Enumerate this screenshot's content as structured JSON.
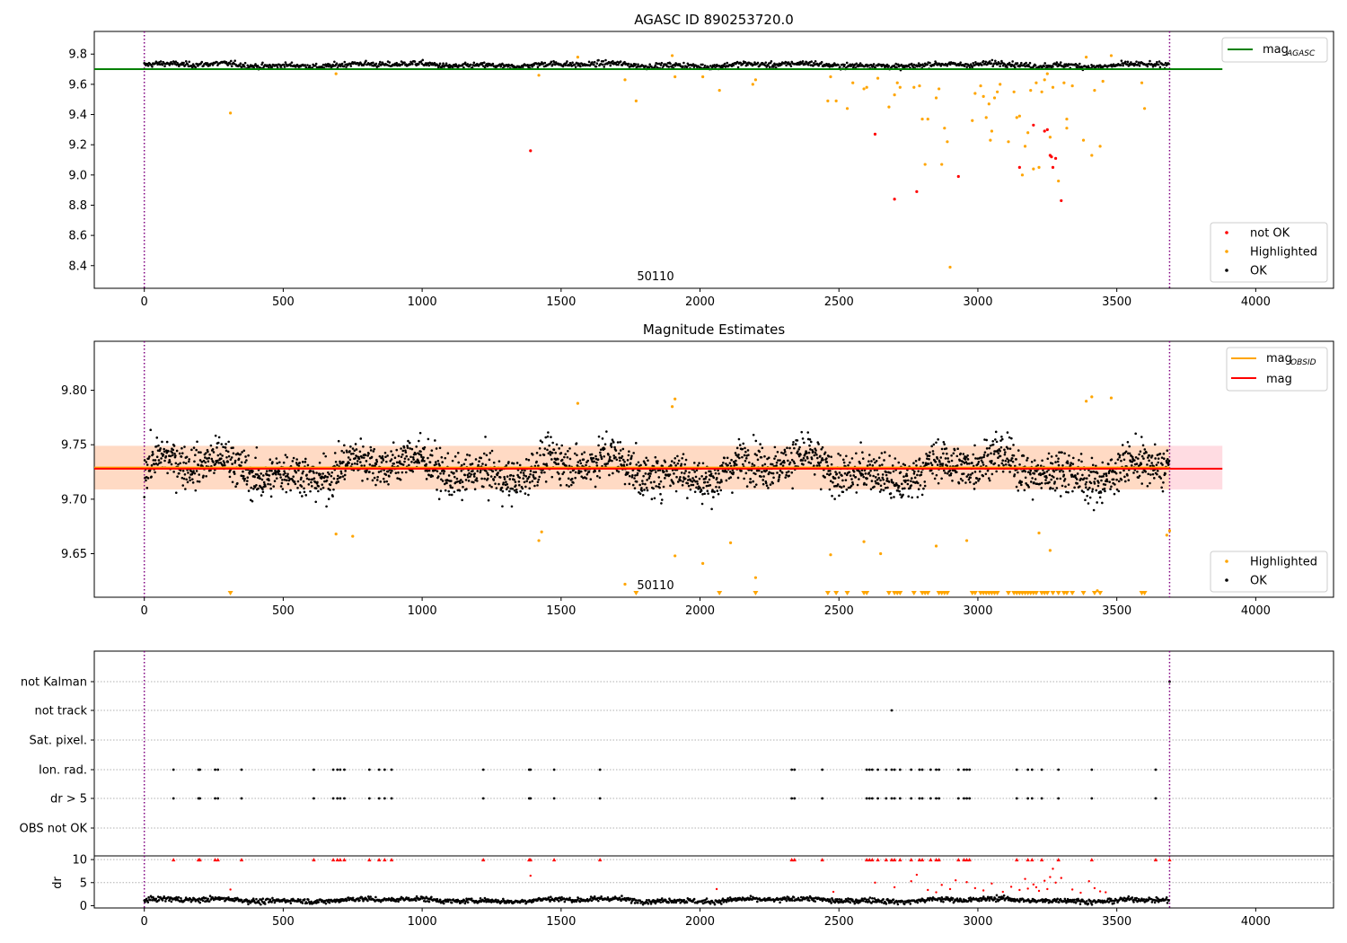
{
  "colors": {
    "ok": "#000000",
    "highlighted": "#ffa500",
    "not_ok": "#ff0000",
    "mag_agasc": "#008000",
    "mag_obsid": "#ffa500",
    "mag": "#ff0000",
    "band_obsid": "#ffdab9",
    "band_mag": "#ffc0cb",
    "obs_boundary": "#800080",
    "grid": "#b0b0b0"
  },
  "chart_data": [
    {
      "type": "scatter",
      "title": "AGASC ID 890253720.0",
      "xlim": [
        -180,
        4280
      ],
      "ylim": [
        8.25,
        9.95
      ],
      "xticks": [
        "0",
        "500",
        "1000",
        "1500",
        "2000",
        "2500",
        "3000",
        "3500",
        "4000"
      ],
      "xtick_values": [
        0,
        500,
        1000,
        1500,
        2000,
        2500,
        3000,
        3500,
        4000
      ],
      "yticks": [
        "8.4",
        "8.6",
        "8.8",
        "9.0",
        "9.2",
        "9.4",
        "9.6",
        "9.8"
      ],
      "ytick_values": [
        8.4,
        8.6,
        8.8,
        9.0,
        9.2,
        9.4,
        9.6,
        9.8
      ],
      "obs_boundaries": [
        0,
        3690
      ],
      "obsid_label": "50110",
      "obsid_label_x": 1840,
      "mag_agasc": {
        "value": 9.7,
        "x_range": [
          -180,
          3880
        ]
      },
      "ok_band": {
        "center": 9.728,
        "spread": 0.015,
        "count": 1300,
        "x_range": [
          0,
          3690
        ]
      },
      "legend_lines": [
        {
          "key": "mag_agasc",
          "name": "mag",
          "subscript": "AGASC"
        }
      ],
      "legend_points": [
        {
          "key": "not_ok",
          "name": "not OK"
        },
        {
          "key": "highlighted",
          "name": "Highlighted"
        },
        {
          "key": "ok",
          "name": "OK"
        }
      ],
      "highlighted_points": [
        [
          310,
          9.41
        ],
        [
          690,
          9.67
        ],
        [
          1420,
          9.66
        ],
        [
          1560,
          9.78
        ],
        [
          1730,
          9.63
        ],
        [
          1770,
          9.49
        ],
        [
          1900,
          9.79
        ],
        [
          1910,
          9.65
        ],
        [
          2010,
          9.65
        ],
        [
          2070,
          9.56
        ],
        [
          2190,
          9.6
        ],
        [
          2200,
          9.63
        ],
        [
          2460,
          9.49
        ],
        [
          2470,
          9.65
        ],
        [
          2490,
          9.49
        ],
        [
          2530,
          9.44
        ],
        [
          2550,
          9.61
        ],
        [
          2590,
          9.57
        ],
        [
          2600,
          9.58
        ],
        [
          2640,
          9.64
        ],
        [
          2680,
          9.45
        ],
        [
          2700,
          9.53
        ],
        [
          2710,
          9.61
        ],
        [
          2720,
          9.58
        ],
        [
          2770,
          9.58
        ],
        [
          2790,
          9.59
        ],
        [
          2800,
          9.37
        ],
        [
          2810,
          9.07
        ],
        [
          2820,
          9.37
        ],
        [
          2850,
          9.51
        ],
        [
          2860,
          9.57
        ],
        [
          2870,
          9.07
        ],
        [
          2880,
          9.31
        ],
        [
          2890,
          9.22
        ],
        [
          2900,
          8.39
        ],
        [
          2980,
          9.36
        ],
        [
          2990,
          9.54
        ],
        [
          3010,
          9.59
        ],
        [
          3020,
          9.52
        ],
        [
          3030,
          9.38
        ],
        [
          3040,
          9.47
        ],
        [
          3045,
          9.23
        ],
        [
          3050,
          9.29
        ],
        [
          3060,
          9.51
        ],
        [
          3070,
          9.55
        ],
        [
          3080,
          9.6
        ],
        [
          3110,
          9.22
        ],
        [
          3130,
          9.55
        ],
        [
          3140,
          9.38
        ],
        [
          3150,
          9.39
        ],
        [
          3160,
          9.0
        ],
        [
          3170,
          9.19
        ],
        [
          3180,
          9.28
        ],
        [
          3190,
          9.56
        ],
        [
          3200,
          9.04
        ],
        [
          3210,
          9.61
        ],
        [
          3220,
          9.05
        ],
        [
          3230,
          9.55
        ],
        [
          3240,
          9.63
        ],
        [
          3250,
          9.67
        ],
        [
          3260,
          9.25
        ],
        [
          3270,
          9.58
        ],
        [
          3290,
          8.96
        ],
        [
          3310,
          9.61
        ],
        [
          3320,
          9.37
        ],
        [
          3320,
          9.31
        ],
        [
          3340,
          9.59
        ],
        [
          3380,
          9.23
        ],
        [
          3390,
          9.78
        ],
        [
          3410,
          9.13
        ],
        [
          3420,
          9.56
        ],
        [
          3440,
          9.19
        ],
        [
          3450,
          9.62
        ],
        [
          3480,
          9.79
        ],
        [
          3590,
          9.61
        ],
        [
          3600,
          9.44
        ]
      ],
      "not_ok_points": [
        [
          1390,
          9.16
        ],
        [
          2630,
          9.27
        ],
        [
          2700,
          8.84
        ],
        [
          2780,
          8.89
        ],
        [
          2930,
          8.99
        ],
        [
          3150,
          9.05
        ],
        [
          3200,
          9.33
        ],
        [
          3240,
          9.29
        ],
        [
          3250,
          9.3
        ],
        [
          3260,
          9.13
        ],
        [
          3265,
          9.12
        ],
        [
          3270,
          9.05
        ],
        [
          3280,
          9.11
        ],
        [
          3300,
          8.83
        ]
      ]
    },
    {
      "type": "scatter",
      "title": "Magnitude Estimates",
      "xlim": [
        -180,
        4280
      ],
      "ylim": [
        9.61,
        9.845
      ],
      "xticks": [
        "0",
        "500",
        "1000",
        "1500",
        "2000",
        "2500",
        "3000",
        "3500",
        "4000"
      ],
      "xtick_values": [
        0,
        500,
        1000,
        1500,
        2000,
        2500,
        3000,
        3500,
        4000
      ],
      "yticks": [
        "9.65",
        "9.70",
        "9.75",
        "9.80"
      ],
      "ytick_values": [
        9.65,
        9.7,
        9.75,
        9.8
      ],
      "obs_boundaries": [
        0,
        3690
      ],
      "obsid_label": "50110",
      "obsid_label_x": 1840,
      "mag_obsid": {
        "value": 9.729,
        "band": [
          9.709,
          9.749
        ],
        "x_range": [
          -180,
          3690
        ]
      },
      "mag": {
        "value": 9.728,
        "band": [
          9.709,
          9.749
        ],
        "x_range": [
          -180,
          3880
        ]
      },
      "ok_band": {
        "center": 9.728,
        "spread": 0.016,
        "count": 2600,
        "x_range": [
          0,
          3690
        ]
      },
      "legend_lines": [
        {
          "key": "mag_obsid",
          "name": "mag",
          "subscript": "OBSID"
        },
        {
          "key": "mag",
          "name": "mag",
          "subscript": ""
        }
      ],
      "legend_points": [
        {
          "key": "highlighted",
          "name": "Highlighted"
        },
        {
          "key": "ok",
          "name": "OK"
        }
      ],
      "highlighted_points": [
        [
          690,
          9.668
        ],
        [
          750,
          9.666
        ],
        [
          1420,
          9.662
        ],
        [
          1430,
          9.67
        ],
        [
          1560,
          9.788
        ],
        [
          1730,
          9.622
        ],
        [
          1900,
          9.785
        ],
        [
          1910,
          9.792
        ],
        [
          1910,
          9.648
        ],
        [
          2010,
          9.641
        ],
        [
          2110,
          9.66
        ],
        [
          2200,
          9.628
        ],
        [
          2470,
          9.649
        ],
        [
          2590,
          9.661
        ],
        [
          2650,
          9.65
        ],
        [
          2850,
          9.657
        ],
        [
          2960,
          9.662
        ],
        [
          3220,
          9.669
        ],
        [
          3260,
          9.653
        ],
        [
          3390,
          9.79
        ],
        [
          3410,
          9.794
        ],
        [
          3480,
          9.793
        ],
        [
          3430,
          9.616
        ],
        [
          3680,
          9.667
        ],
        [
          3690,
          9.671
        ]
      ],
      "below_markers": [
        310,
        1770,
        2070,
        2200,
        2460,
        2490,
        2530,
        2590,
        2600,
        2680,
        2700,
        2710,
        2720,
        2770,
        2800,
        2810,
        2820,
        2860,
        2870,
        2880,
        2890,
        2980,
        2990,
        3010,
        3020,
        3030,
        3040,
        3050,
        3060,
        3070,
        3110,
        3130,
        3140,
        3150,
        3160,
        3170,
        3180,
        3190,
        3200,
        3210,
        3230,
        3240,
        3250,
        3270,
        3290,
        3310,
        3320,
        3340,
        3380,
        3420,
        3440,
        3590,
        3600
      ]
    },
    {
      "type": "scatter",
      "title": "",
      "xlim": [
        -180,
        4280
      ],
      "xticks": [
        "0",
        "500",
        "1000",
        "1500",
        "2000",
        "2500",
        "3000",
        "3500",
        "4000"
      ],
      "xtick_values": [
        0,
        500,
        1000,
        1500,
        2000,
        2500,
        3000,
        3500,
        4000
      ],
      "obs_boundaries": [
        0,
        3690
      ],
      "flag_rows": [
        "not Kalman",
        "not track",
        "Sat. pixel.",
        "Ion. rad.",
        "dr > 5",
        "OBS not OK"
      ],
      "flag_points": {
        "not Kalman": [
          3690
        ],
        "not track": [
          2690
        ],
        "Sat. pixel.": [],
        "Ion. rad.": [
          105,
          195,
          200,
          255,
          265,
          350,
          610,
          680,
          695,
          705,
          720,
          810,
          845,
          865,
          890,
          1220,
          1385,
          1390,
          1475,
          1640,
          2330,
          2340,
          2440,
          2600,
          2610,
          2620,
          2640,
          2670,
          2690,
          2700,
          2720,
          2760,
          2790,
          2800,
          2830,
          2850,
          2860,
          2930,
          2950,
          2960,
          2970,
          3140,
          3180,
          3195,
          3230,
          3290,
          3410,
          3640
        ],
        "dr > 5": [
          105,
          195,
          200,
          255,
          265,
          350,
          610,
          680,
          695,
          705,
          720,
          810,
          845,
          865,
          890,
          1220,
          1385,
          1390,
          1475,
          1640,
          2330,
          2340,
          2440,
          2600,
          2610,
          2620,
          2640,
          2670,
          2690,
          2700,
          2720,
          2760,
          2790,
          2800,
          2830,
          2850,
          2860,
          2930,
          2950,
          2960,
          2970,
          3140,
          3180,
          3195,
          3230,
          3290,
          3410,
          3640
        ],
        "OBS not OK": []
      }
    },
    {
      "type": "scatter",
      "title": "",
      "xlim": [
        -180,
        4280
      ],
      "ylim": [
        -0.5,
        10.8
      ],
      "xticks": [
        "0",
        "500",
        "1000",
        "1500",
        "2000",
        "2500",
        "3000",
        "3500",
        "4000"
      ],
      "xtick_values": [
        0,
        500,
        1000,
        1500,
        2000,
        2500,
        3000,
        3500,
        4000
      ],
      "yticks": [
        "0",
        "5",
        "10"
      ],
      "ytick_values": [
        0,
        5,
        10
      ],
      "ylabel": "dr",
      "obs_boundaries": [
        0,
        3690
      ],
      "ok_band": {
        "center": 1.2,
        "spread": 0.45,
        "count": 1400,
        "x_range": [
          0,
          3690
        ]
      },
      "capped_points": [
        105,
        195,
        200,
        255,
        265,
        350,
        610,
        680,
        695,
        705,
        720,
        810,
        845,
        865,
        890,
        1220,
        1385,
        1390,
        1475,
        1640,
        2330,
        2340,
        2440,
        2600,
        2610,
        2620,
        2640,
        2670,
        2690,
        2700,
        2720,
        2760,
        2790,
        2800,
        2830,
        2850,
        2860,
        2930,
        2950,
        2960,
        2970,
        3140,
        3180,
        3195,
        3230,
        3290,
        3410,
        3640,
        3690
      ],
      "not_ok_points": [
        [
          310,
          3.5
        ],
        [
          1390,
          6.5
        ],
        [
          2060,
          3.6
        ],
        [
          2480,
          3.0
        ],
        [
          2630,
          5.0
        ],
        [
          2700,
          4.0
        ],
        [
          2760,
          5.3
        ],
        [
          2780,
          6.7
        ],
        [
          2820,
          3.4
        ],
        [
          2850,
          2.9
        ],
        [
          2870,
          4.5
        ],
        [
          2900,
          3.6
        ],
        [
          2920,
          5.5
        ],
        [
          2960,
          5.1
        ],
        [
          2990,
          3.8
        ],
        [
          3020,
          3.3
        ],
        [
          3050,
          4.8
        ],
        [
          3090,
          3.0
        ],
        [
          3120,
          4.1
        ],
        [
          3150,
          3.4
        ],
        [
          3170,
          5.8
        ],
        [
          3180,
          3.7
        ],
        [
          3200,
          4.6
        ],
        [
          3210,
          4.0
        ],
        [
          3220,
          3.2
        ],
        [
          3240,
          5.4
        ],
        [
          3250,
          3.6
        ],
        [
          3260,
          6.2
        ],
        [
          3270,
          8.0
        ],
        [
          3280,
          5.0
        ],
        [
          3300,
          6.0
        ],
        [
          3340,
          3.5
        ],
        [
          3370,
          2.8
        ],
        [
          3400,
          5.3
        ],
        [
          3420,
          3.8
        ],
        [
          3440,
          3.1
        ],
        [
          3460,
          2.9
        ]
      ]
    }
  ]
}
